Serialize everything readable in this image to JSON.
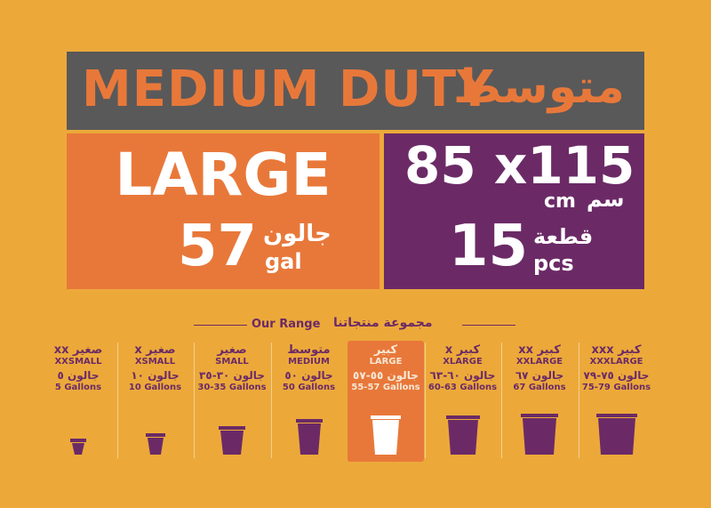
{
  "header": {
    "title_en": "MEDIUM DUTY",
    "title_ar": "متوسط"
  },
  "size": {
    "name": "LARGE",
    "gallons": "57",
    "gallons_ar": "جالون",
    "gallons_unit": "gal",
    "dims": "85 x115",
    "dims_unit_ar": "سم",
    "dims_unit": "cm",
    "count": "15",
    "count_ar": "قطعة",
    "count_unit": "pcs"
  },
  "range": {
    "title_en": "Our Range",
    "title_ar": "مجموعة منتجاتنا",
    "items": [
      {
        "ar": "صغير xx",
        "en": "XXSMALL",
        "gal_ar": "جالون ٥",
        "gal_en": "5 Gallons"
      },
      {
        "ar": "صغير x",
        "en": "XSMALL",
        "gal_ar": "جالون ١٠",
        "gal_en": "10 Gallons"
      },
      {
        "ar": "صغير",
        "en": "SMALL",
        "gal_ar": "جالون ٣٠-٣٥",
        "gal_en": "30-35 Gallons"
      },
      {
        "ar": "متوسط",
        "en": "MEDIUM",
        "gal_ar": "جالون ٥٠",
        "gal_en": "50 Gallons"
      },
      {
        "ar": "كبير",
        "en": "LARGE",
        "gal_ar": "جالون ٥٥-٥٧",
        "gal_en": "55-57 Gallons",
        "highlighted": true
      },
      {
        "ar": "كبير x",
        "en": "XLARGE",
        "gal_ar": "جالون ٦٠-٦٣",
        "gal_en": "60-63 Gallons"
      },
      {
        "ar": "كبير xx",
        "en": "XXLARGE",
        "gal_ar": "جالون ٦٧",
        "gal_en": "67 Gallons"
      },
      {
        "ar": "كبير xxx",
        "en": "XXXLARGE",
        "gal_ar": "جالون ٧٥-٧٩",
        "gal_en": "75-79 Gallons"
      }
    ]
  }
}
